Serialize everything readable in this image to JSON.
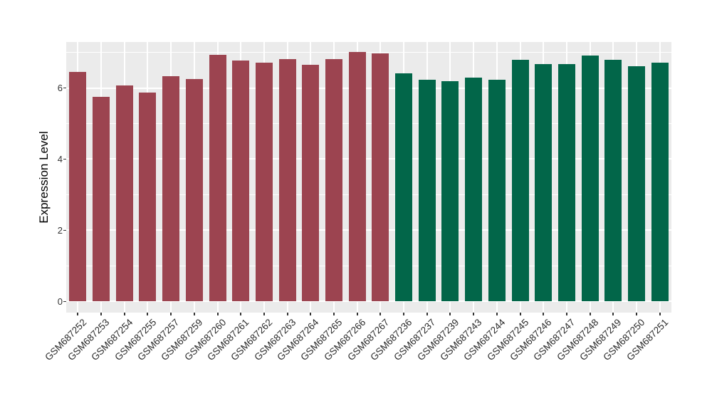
{
  "chart_data": {
    "type": "bar",
    "title": "",
    "ylabel": "Expression Level",
    "xlabel": "",
    "ylim": [
      0,
      7.3
    ],
    "yticks_major": [
      0,
      2,
      4,
      6
    ],
    "yticks_minor": [
      1,
      3,
      5,
      7
    ],
    "grid": "white major and minor gridlines on grey panel, vertical gridline at each category center",
    "legend_position": "none",
    "panel_bg": "#EBEBEB",
    "grid_color": "#FFFFFF",
    "tick_color": "#333333",
    "categories": [
      "GSM687252",
      "GSM687253",
      "GSM687254",
      "GSM687255",
      "GSM687257",
      "GSM687259",
      "GSM687260",
      "GSM687261",
      "GSM687262",
      "GSM687263",
      "GSM687264",
      "GSM687265",
      "GSM687266",
      "GSM687267",
      "GSM687236",
      "GSM687237",
      "GSM687239",
      "GSM687243",
      "GSM687244",
      "GSM687245",
      "GSM687246",
      "GSM687247",
      "GSM687248",
      "GSM687249",
      "GSM687250",
      "GSM687251"
    ],
    "values": [
      6.45,
      5.76,
      6.08,
      5.87,
      6.33,
      6.26,
      6.93,
      6.77,
      6.72,
      6.81,
      6.65,
      6.82,
      7.01,
      6.97,
      6.42,
      6.24,
      6.19,
      6.3,
      6.24,
      6.79,
      6.67,
      6.67,
      6.91,
      6.8,
      6.61,
      6.72
    ],
    "bar_groups": [
      "g1",
      "g1",
      "g1",
      "g1",
      "g1",
      "g1",
      "g1",
      "g1",
      "g1",
      "g1",
      "g1",
      "g1",
      "g1",
      "g1",
      "g2",
      "g2",
      "g2",
      "g2",
      "g2",
      "g2",
      "g2",
      "g2",
      "g2",
      "g2",
      "g2",
      "g2"
    ],
    "group_colors": {
      "g1": "#9C4450",
      "g2": "#026649"
    }
  }
}
